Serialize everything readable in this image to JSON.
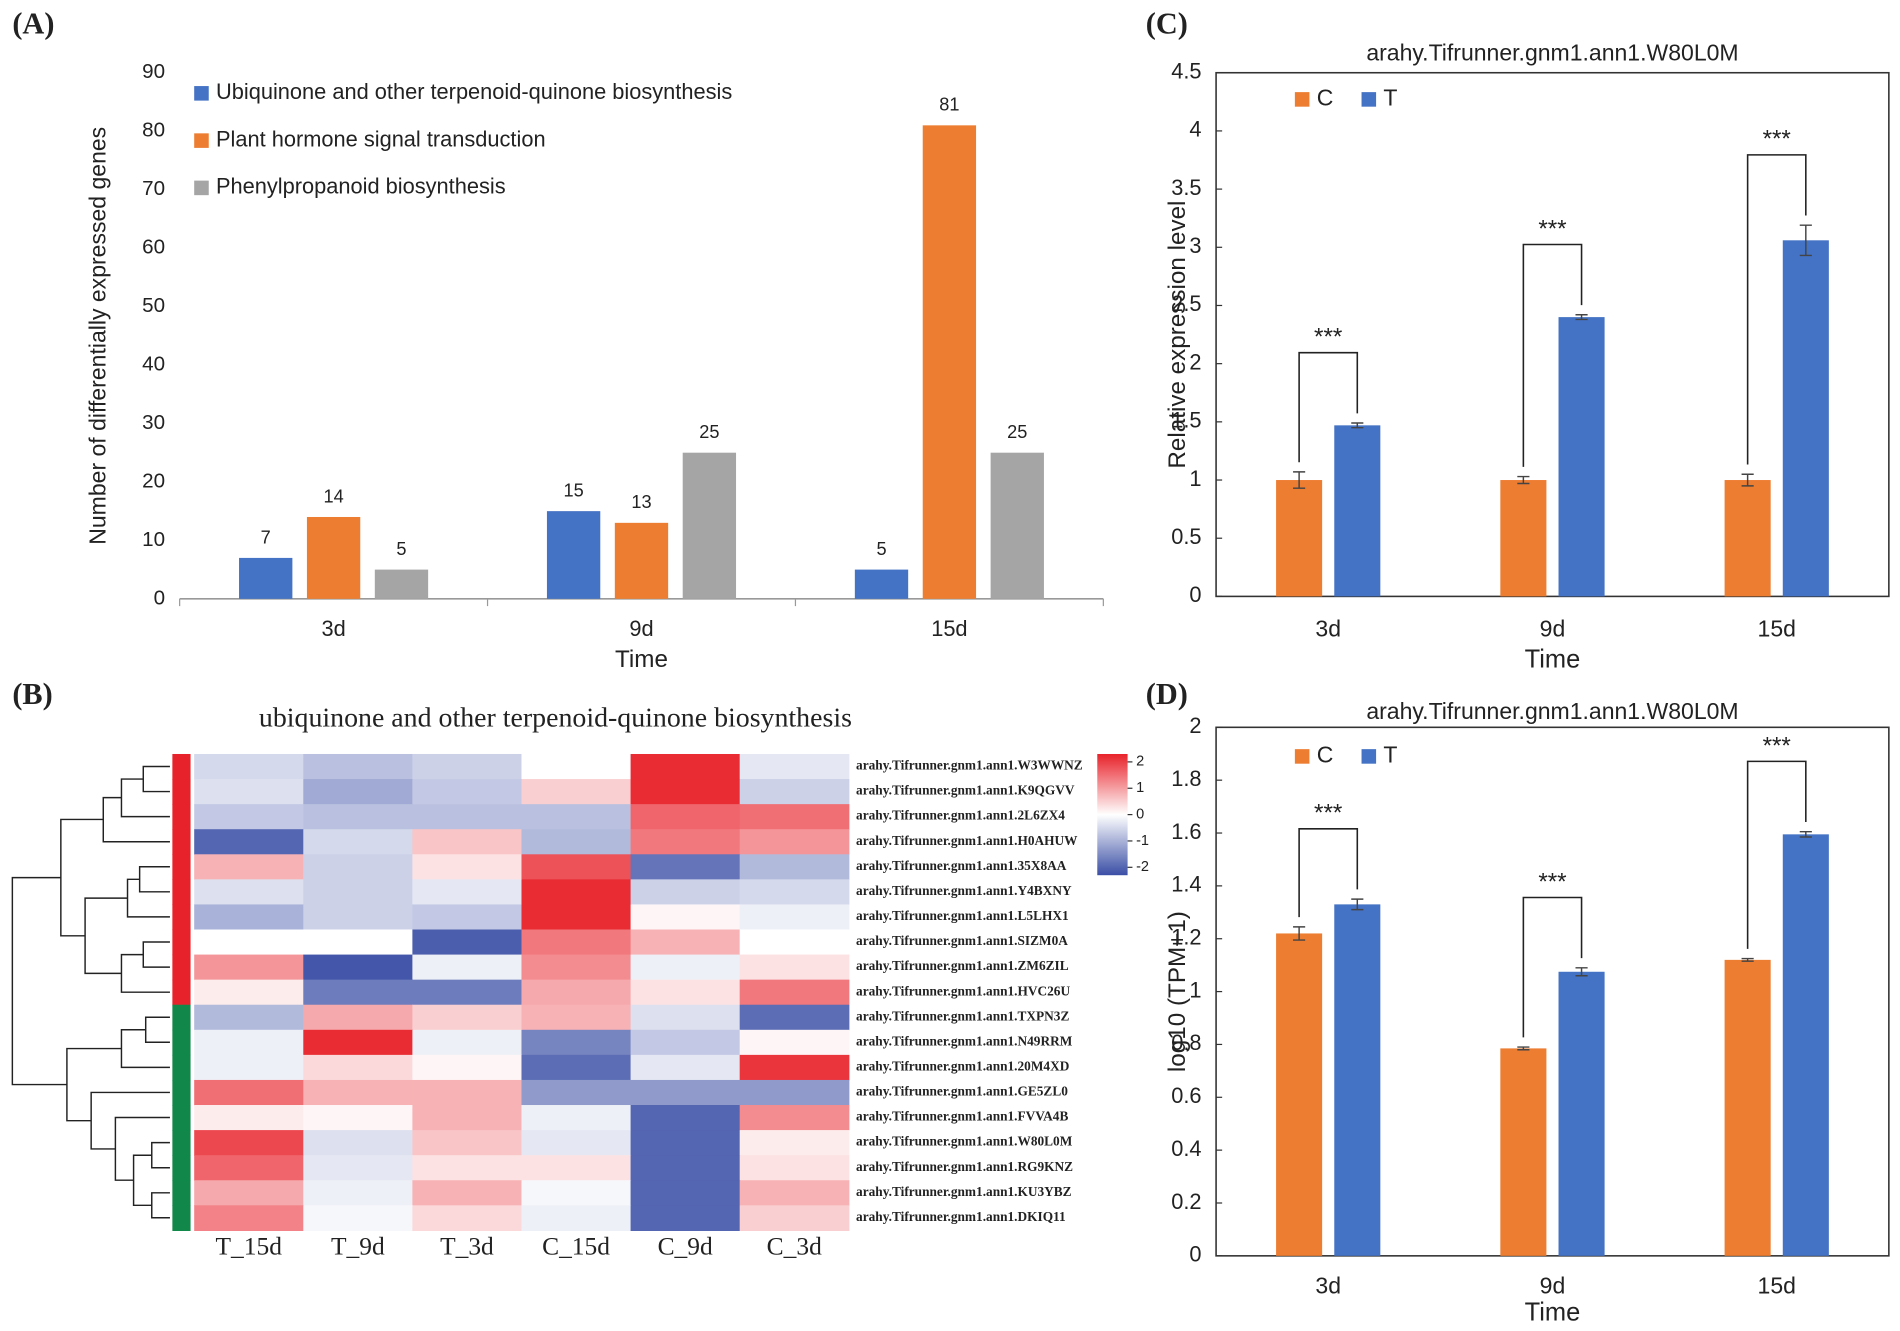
{
  "chart_data": [
    {
      "type": "bar",
      "panel_label": "(A)",
      "ylabel": "Number of differentially expressed genes",
      "xlabel": "Time",
      "categories": [
        "3d",
        "9d",
        "15d"
      ],
      "series": [
        {
          "name": "Ubiquinone and other terpenoid-quinone biosynthesis",
          "color": "#4472c4",
          "values": [
            7,
            15,
            5
          ]
        },
        {
          "name": "Plant hormone signal transduction",
          "color": "#ed7d31",
          "values": [
            14,
            13,
            81
          ]
        },
        {
          "name": "Phenylpropanoid biosynthesis",
          "color": "#a5a5a5",
          "values": [
            5,
            25,
            25
          ]
        }
      ],
      "ylim": [
        0,
        90
      ],
      "yticks": [
        0,
        10,
        20,
        30,
        40,
        50,
        60,
        70,
        80,
        90
      ],
      "data_labels": true,
      "legend": "upper left"
    },
    {
      "type": "heatmap",
      "panel_label": "(B)",
      "title": "ubiquinone and other terpenoid-quinone biosynthesis",
      "columns": [
        "T_15d",
        "T_9d",
        "T_3d",
        "C_15d",
        "C_9d",
        "C_3d"
      ],
      "rows": [
        "arahy.Tifrunner.gnm1.ann1.W3WWNZ",
        "arahy.Tifrunner.gnm1.ann1.K9QGVV",
        "arahy.Tifrunner.gnm1.ann1.2L6ZX4",
        "arahy.Tifrunner.gnm1.ann1.H0AHUW",
        "arahy.Tifrunner.gnm1.ann1.35X8AA",
        "arahy.Tifrunner.gnm1.ann1.Y4BXNY",
        "arahy.Tifrunner.gnm1.ann1.L5LHX1",
        "arahy.Tifrunner.gnm1.ann1.SIZM0A",
        "arahy.Tifrunner.gnm1.ann1.ZM6ZIL",
        "arahy.Tifrunner.gnm1.ann1.HVC26U",
        "arahy.Tifrunner.gnm1.ann1.TXPN3Z",
        "arahy.Tifrunner.gnm1.ann1.N49RRM",
        "arahy.Tifrunner.gnm1.ann1.20M4XD",
        "arahy.Tifrunner.gnm1.ann1.GE5ZL0",
        "arahy.Tifrunner.gnm1.ann1.FVVA4B",
        "arahy.Tifrunner.gnm1.ann1.W80L0M",
        "arahy.Tifrunner.gnm1.ann1.RG9KNZ",
        "arahy.Tifrunner.gnm1.ann1.KU3YBZ",
        "arahy.Tifrunner.gnm1.ann1.DKIQ11"
      ],
      "values": [
        [
          -0.5,
          -0.8,
          -0.6,
          0,
          2.2,
          -0.3
        ],
        [
          -0.4,
          -1.1,
          -0.7,
          0.5,
          2.2,
          -0.6
        ],
        [
          -0.7,
          -0.8,
          -0.8,
          -0.8,
          1.6,
          1.5
        ],
        [
          -2,
          -0.5,
          0.6,
          -0.9,
          1.4,
          1.1
        ],
        [
          0.8,
          -0.6,
          0.3,
          1.8,
          -1.8,
          -0.9
        ],
        [
          -0.4,
          -0.6,
          -0.3,
          2.2,
          -0.6,
          -0.5
        ],
        [
          -1,
          -0.6,
          -0.7,
          2.2,
          0.1,
          -0.2
        ],
        [
          0,
          0,
          -2.1,
          1.4,
          0.8,
          0
        ],
        [
          1.1,
          -2.2,
          -0.2,
          1.2,
          -0.2,
          0.3
        ],
        [
          0.2,
          -1.7,
          -1.7,
          0.9,
          0.3,
          1.4
        ],
        [
          -0.9,
          0.9,
          0.5,
          0.8,
          -0.4,
          -1.9
        ],
        [
          -0.2,
          2.2,
          -0.2,
          -1.6,
          -0.7,
          0.1
        ],
        [
          -0.2,
          0.4,
          0.1,
          -1.9,
          -0.3,
          2.1
        ],
        [
          1.5,
          0.8,
          0.8,
          -1.3,
          -1.3,
          -1.3
        ],
        [
          0.2,
          0.1,
          0.8,
          -0.2,
          -2,
          1.2
        ],
        [
          1.9,
          -0.4,
          0.6,
          -0.3,
          -2,
          0.2
        ],
        [
          1.6,
          -0.3,
          0.3,
          0.3,
          -2,
          0.3
        ],
        [
          0.9,
          -0.2,
          0.8,
          -0.1,
          -2,
          0.8
        ],
        [
          1.3,
          -0.1,
          0.4,
          -0.2,
          -2,
          0.5
        ]
      ],
      "row_group_colors": [
        "#e8222a",
        "#e8222a",
        "#e8222a",
        "#e8222a",
        "#e8222a",
        "#e8222a",
        "#e8222a",
        "#e8222a",
        "#e8222a",
        "#e8222a",
        "#11884a",
        "#11884a",
        "#11884a",
        "#11884a",
        "#11884a",
        "#11884a",
        "#11884a",
        "#11884a",
        "#11884a"
      ],
      "colors": [
        "#3a4ea5",
        "#ffffff",
        "#e8222a"
      ],
      "zlim": [
        -2.3,
        2.3
      ],
      "colorbar_ticks": [
        2,
        1,
        0,
        -1,
        -2
      ]
    },
    {
      "type": "bar",
      "panel_label": "(C)",
      "title": "arahy.Tifrunner.gnm1.ann1.W80L0M",
      "ylabel": "Relative expression level",
      "xlabel": "Time",
      "categories": [
        "3d",
        "9d",
        "15d"
      ],
      "series": [
        {
          "name": "C",
          "color": "#ed7d31",
          "values": [
            1,
            1,
            1
          ],
          "errors": [
            0.07,
            0.03,
            0.05
          ]
        },
        {
          "name": "T",
          "color": "#4472c4",
          "values": [
            1.47,
            2.4,
            3.06
          ],
          "errors": [
            0.02,
            0.02,
            0.13
          ]
        }
      ],
      "ylim": [
        0,
        4.5
      ],
      "yticks": [
        0,
        0.5,
        1,
        1.5,
        2,
        2.5,
        3,
        3.5,
        4,
        4.5
      ],
      "annotations": [
        "***",
        "***",
        "***"
      ],
      "legend": "upper left"
    },
    {
      "type": "bar",
      "panel_label": "(D)",
      "title": "arahy.Tifrunner.gnm1.ann1.W80L0M",
      "ylabel": "log10 (TPM+1)",
      "xlabel": "Time",
      "categories": [
        "3d",
        "9d",
        "15d"
      ],
      "series": [
        {
          "name": "C",
          "color": "#ed7d31",
          "values": [
            1.22,
            0.785,
            1.12
          ],
          "errors": [
            0.025,
            0.005,
            0.005
          ]
        },
        {
          "name": "T",
          "color": "#4472c4",
          "values": [
            1.33,
            1.075,
            1.595
          ],
          "errors": [
            0.02,
            0.015,
            0.01
          ]
        }
      ],
      "ylim": [
        0,
        2
      ],
      "yticks": [
        0,
        0.2,
        0.4,
        0.6,
        0.8,
        1,
        1.2,
        1.4,
        1.6,
        1.8,
        2
      ],
      "annotations": [
        "***",
        "***",
        "***"
      ],
      "legend": "upper left"
    }
  ]
}
